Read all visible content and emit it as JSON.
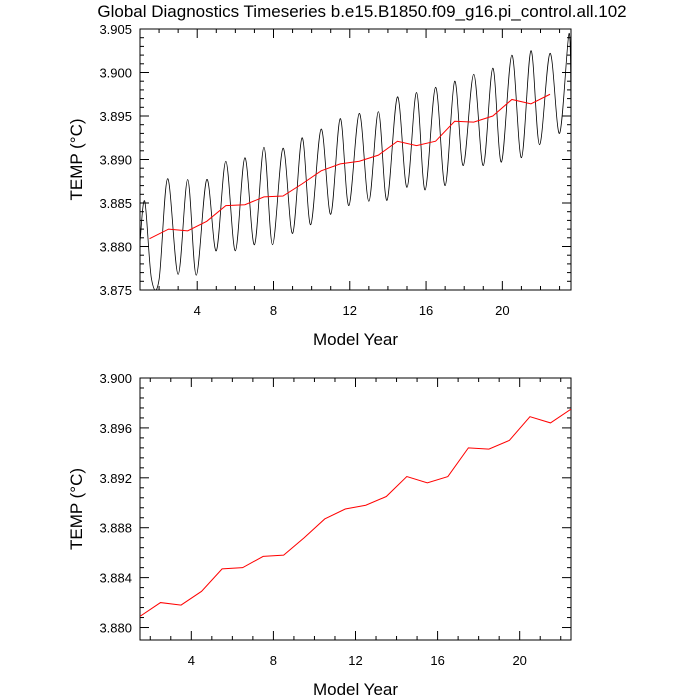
{
  "title": "Global Diagnostics Timeseries b.e15.B1850.f09_g16.pi_control.all.102",
  "chart_data": [
    {
      "type": "line",
      "xlabel": "Model Year",
      "ylabel": "TEMP (°C)",
      "xlim": [
        1,
        23.6
      ],
      "ylim": [
        3.875,
        3.905
      ],
      "xticks": [
        4,
        8,
        12,
        16,
        20
      ],
      "yticks": [
        3.875,
        3.88,
        3.885,
        3.89,
        3.895,
        3.9,
        3.905
      ],
      "ytick_labels": [
        "3.875",
        "3.880",
        "3.885",
        "3.890",
        "3.895",
        "3.900",
        "3.905"
      ],
      "series": [
        {
          "color": "#000000",
          "style": "monthly",
          "x": [
            1.0,
            1.25,
            1.6,
            2.0,
            2.45,
            3.0,
            3.5,
            3.95,
            4.5,
            5.0,
            5.5,
            6.0,
            6.5,
            7.0,
            7.5,
            7.95,
            8.5,
            9.0,
            9.5,
            9.95,
            10.5,
            11.0,
            11.5,
            11.95,
            12.5,
            13.0,
            13.5,
            13.95,
            14.5,
            15.0,
            15.5,
            15.95,
            16.5,
            17.0,
            17.5,
            17.95,
            18.5,
            19.0,
            19.5,
            19.95,
            20.5,
            21.0,
            21.5,
            21.95,
            22.5,
            23.0,
            23.5,
            23.6
          ],
          "y": [
            3.8805,
            3.8852,
            3.8763,
            3.8762,
            3.8878,
            3.8768,
            3.8877,
            3.8767,
            3.8877,
            3.8795,
            3.8898,
            3.8795,
            3.8902,
            3.8802,
            3.8914,
            3.8802,
            3.8913,
            3.8815,
            3.8925,
            3.8825,
            3.8935,
            3.8837,
            3.8947,
            3.8847,
            3.8953,
            3.8852,
            3.8955,
            3.8853,
            3.8972,
            3.8868,
            3.8977,
            3.8865,
            3.8983,
            3.887,
            3.899,
            3.8893,
            3.8998,
            3.8893,
            3.9005,
            3.8897,
            3.902,
            3.8902,
            3.9025,
            3.8917,
            3.9022,
            3.893,
            3.9045,
            3.8945
          ]
        },
        {
          "color": "#ff0000",
          "style": "annual",
          "x": [
            1.5,
            2.5,
            3.5,
            4.5,
            5.5,
            6.5,
            7.5,
            8.5,
            9.5,
            10.5,
            11.5,
            12.5,
            13.5,
            14.5,
            15.5,
            16.5,
            17.5,
            18.5,
            19.5,
            20.5,
            21.5,
            22.5
          ],
          "y": [
            3.8809,
            3.882,
            3.8818,
            3.8829,
            3.8847,
            3.8848,
            3.8857,
            3.8858,
            3.8872,
            3.8887,
            3.8895,
            3.8898,
            3.8905,
            3.8921,
            3.8916,
            3.8921,
            3.8944,
            3.8943,
            3.895,
            3.8969,
            3.8964,
            3.8975
          ]
        }
      ]
    },
    {
      "type": "line",
      "xlabel": "Model Year",
      "ylabel": "TEMP (°C)",
      "xlim": [
        1.5,
        22.5
      ],
      "ylim": [
        3.879,
        3.9
      ],
      "xticks": [
        4,
        8,
        12,
        16,
        20
      ],
      "yticks": [
        3.88,
        3.884,
        3.888,
        3.892,
        3.896,
        3.9
      ],
      "ytick_labels": [
        "3.880",
        "3.884",
        "3.888",
        "3.892",
        "3.896",
        "3.900"
      ],
      "series": [
        {
          "color": "#ff0000",
          "style": "annual",
          "x": [
            1.5,
            2.5,
            3.5,
            4.5,
            5.5,
            6.5,
            7.5,
            8.5,
            9.5,
            10.5,
            11.5,
            12.5,
            13.5,
            14.5,
            15.5,
            16.5,
            17.5,
            18.5,
            19.5,
            20.5,
            21.5,
            22.5
          ],
          "y": [
            3.8809,
            3.882,
            3.8818,
            3.8829,
            3.8847,
            3.8848,
            3.8857,
            3.8858,
            3.8872,
            3.8887,
            3.8895,
            3.8898,
            3.8905,
            3.8921,
            3.8916,
            3.8921,
            3.8944,
            3.8943,
            3.895,
            3.8969,
            3.8964,
            3.8975
          ]
        }
      ]
    }
  ]
}
